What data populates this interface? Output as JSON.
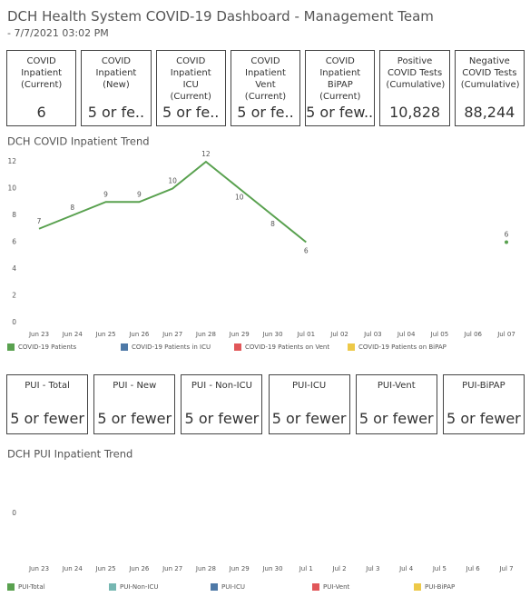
{
  "header": {
    "title": "DCH Health System COVID-19 Dashboard - Management Team",
    "subtitle": "- 7/7/2021 03:02 PM"
  },
  "kpis": [
    {
      "label": "COVID Inpatient (Current)",
      "value": "6"
    },
    {
      "label": "COVID Inpatient (New)",
      "value": "5 or fe.."
    },
    {
      "label": "COVID Inpatient ICU (Current)",
      "value": "5 or fe.."
    },
    {
      "label": "COVID Inpatient Vent (Current)",
      "value": "5 or fe.."
    },
    {
      "label": "COVID Inpatient BiPAP (Current)",
      "value": "5 or few..."
    },
    {
      "label": "Positive COVID Tests (Cumulative)",
      "value": "10,828"
    },
    {
      "label": "Negative COVID Tests (Cumulative)",
      "value": "88,244"
    }
  ],
  "pui": [
    {
      "label": "PUI - Total",
      "value": "5 or fewer"
    },
    {
      "label": "PUI - New",
      "value": "5 or fewer"
    },
    {
      "label": "PUI - Non-ICU",
      "value": "5 or fewer"
    },
    {
      "label": "PUI-ICU",
      "value": "5 or fewer"
    },
    {
      "label": "PUI-Vent",
      "value": "5 or fewer"
    },
    {
      "label": "PUI-BiPAP",
      "value": "5 or fewer"
    }
  ],
  "chart_data": [
    {
      "type": "line",
      "title": "DCH COVID Inpatient Trend",
      "categories": [
        "Jun 23",
        "Jun 24",
        "Jun 25",
        "Jun 26",
        "Jun 27",
        "Jun 28",
        "Jun 29",
        "Jun 30",
        "Jul 01",
        "Jul 02",
        "Jul 03",
        "Jul 04",
        "Jul 05",
        "Jul 06",
        "Jul 07"
      ],
      "series": [
        {
          "name": "COVID-19 Patients",
          "color": "#59a14f",
          "values": [
            7,
            8,
            9,
            9,
            10,
            12,
            10,
            8,
            6,
            null,
            null,
            null,
            null,
            null,
            6
          ]
        },
        {
          "name": "COVID-19 Patients in ICU",
          "color": "#4e79a7",
          "values": [
            null,
            null,
            null,
            null,
            null,
            null,
            null,
            null,
            null,
            null,
            null,
            null,
            null,
            null,
            null
          ]
        },
        {
          "name": "COVID-19 Patients on Vent",
          "color": "#e15759",
          "values": [
            null,
            null,
            null,
            null,
            null,
            null,
            null,
            null,
            null,
            null,
            null,
            null,
            null,
            null,
            null
          ]
        },
        {
          "name": "COVID-19 Patients on BiPAP",
          "color": "#edc948",
          "values": [
            null,
            null,
            null,
            null,
            null,
            null,
            null,
            null,
            null,
            null,
            null,
            null,
            null,
            null,
            null
          ]
        }
      ],
      "ylim": [
        0,
        12
      ],
      "yticks": [
        0,
        2,
        4,
        6,
        8,
        10,
        12
      ],
      "grid": false,
      "data_labels": true
    },
    {
      "type": "line",
      "title": "DCH PUI Inpatient Trend",
      "categories": [
        "Jun 23",
        "Jun 24",
        "Jun 25",
        "Jun 26",
        "Jun 27",
        "Jun 28",
        "Jun 29",
        "Jun 30",
        "Jul 1",
        "Jul 2",
        "Jul 3",
        "Jul 4",
        "Jul 5",
        "Jul 6",
        "Jul 7"
      ],
      "series": [
        {
          "name": "PUI-Total",
          "color": "#59a14f",
          "values": [
            null,
            null,
            null,
            null,
            null,
            null,
            null,
            null,
            null,
            null,
            null,
            null,
            null,
            null,
            null
          ]
        },
        {
          "name": "PUI-Non-ICU",
          "color": "#76b7b2",
          "values": [
            null,
            null,
            null,
            null,
            null,
            null,
            null,
            null,
            null,
            null,
            null,
            null,
            null,
            null,
            null
          ]
        },
        {
          "name": "PUI-ICU",
          "color": "#4e79a7",
          "values": [
            null,
            null,
            null,
            null,
            null,
            null,
            null,
            null,
            null,
            null,
            null,
            null,
            null,
            null,
            null
          ]
        },
        {
          "name": "PUI-Vent",
          "color": "#e15759",
          "values": [
            null,
            null,
            null,
            null,
            null,
            null,
            null,
            null,
            null,
            null,
            null,
            null,
            null,
            null,
            null
          ]
        },
        {
          "name": "PUI-BiPAP",
          "color": "#edc948",
          "values": [
            null,
            null,
            null,
            null,
            null,
            null,
            null,
            null,
            null,
            null,
            null,
            null,
            null,
            null,
            null
          ]
        }
      ],
      "ylim": [
        -1,
        1
      ],
      "yticks": [
        0
      ],
      "grid": false,
      "data_labels": true
    }
  ]
}
